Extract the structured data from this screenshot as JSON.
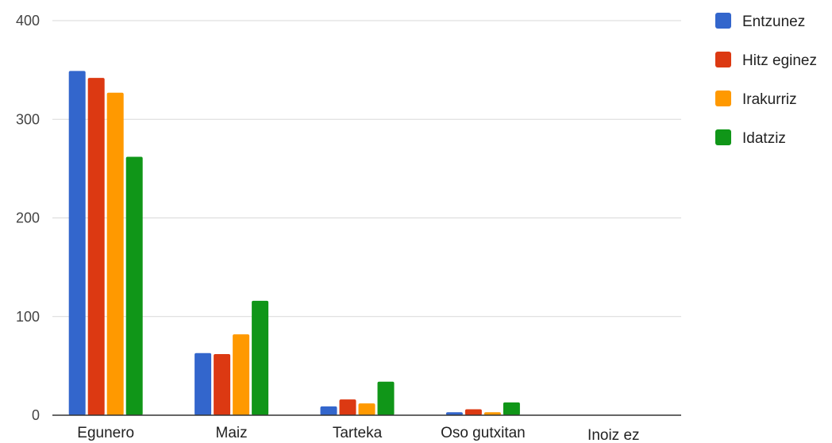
{
  "chart_data": {
    "type": "bar",
    "title": "",
    "xlabel": "",
    "ylabel": "",
    "ylim": [
      0,
      400
    ],
    "yticks": [
      0,
      100,
      200,
      300,
      400
    ],
    "grid": true,
    "legend_position": "right",
    "categories": [
      "Egunero",
      "Maiz",
      "Tarteka",
      "Oso gutxitan",
      "Inoiz ez"
    ],
    "series": [
      {
        "name": "Entzunez",
        "color": "#3366cc",
        "values": [
          349,
          63,
          9,
          3,
          0
        ]
      },
      {
        "name": "Hitz eginez",
        "color": "#dc3912",
        "values": [
          342,
          62,
          16,
          6,
          0
        ]
      },
      {
        "name": "Irakurriz",
        "color": "#ff9900",
        "values": [
          327,
          82,
          12,
          3,
          0
        ]
      },
      {
        "name": "Idatziz",
        "color": "#109618",
        "values": [
          262,
          116,
          34,
          13,
          0
        ]
      }
    ]
  }
}
